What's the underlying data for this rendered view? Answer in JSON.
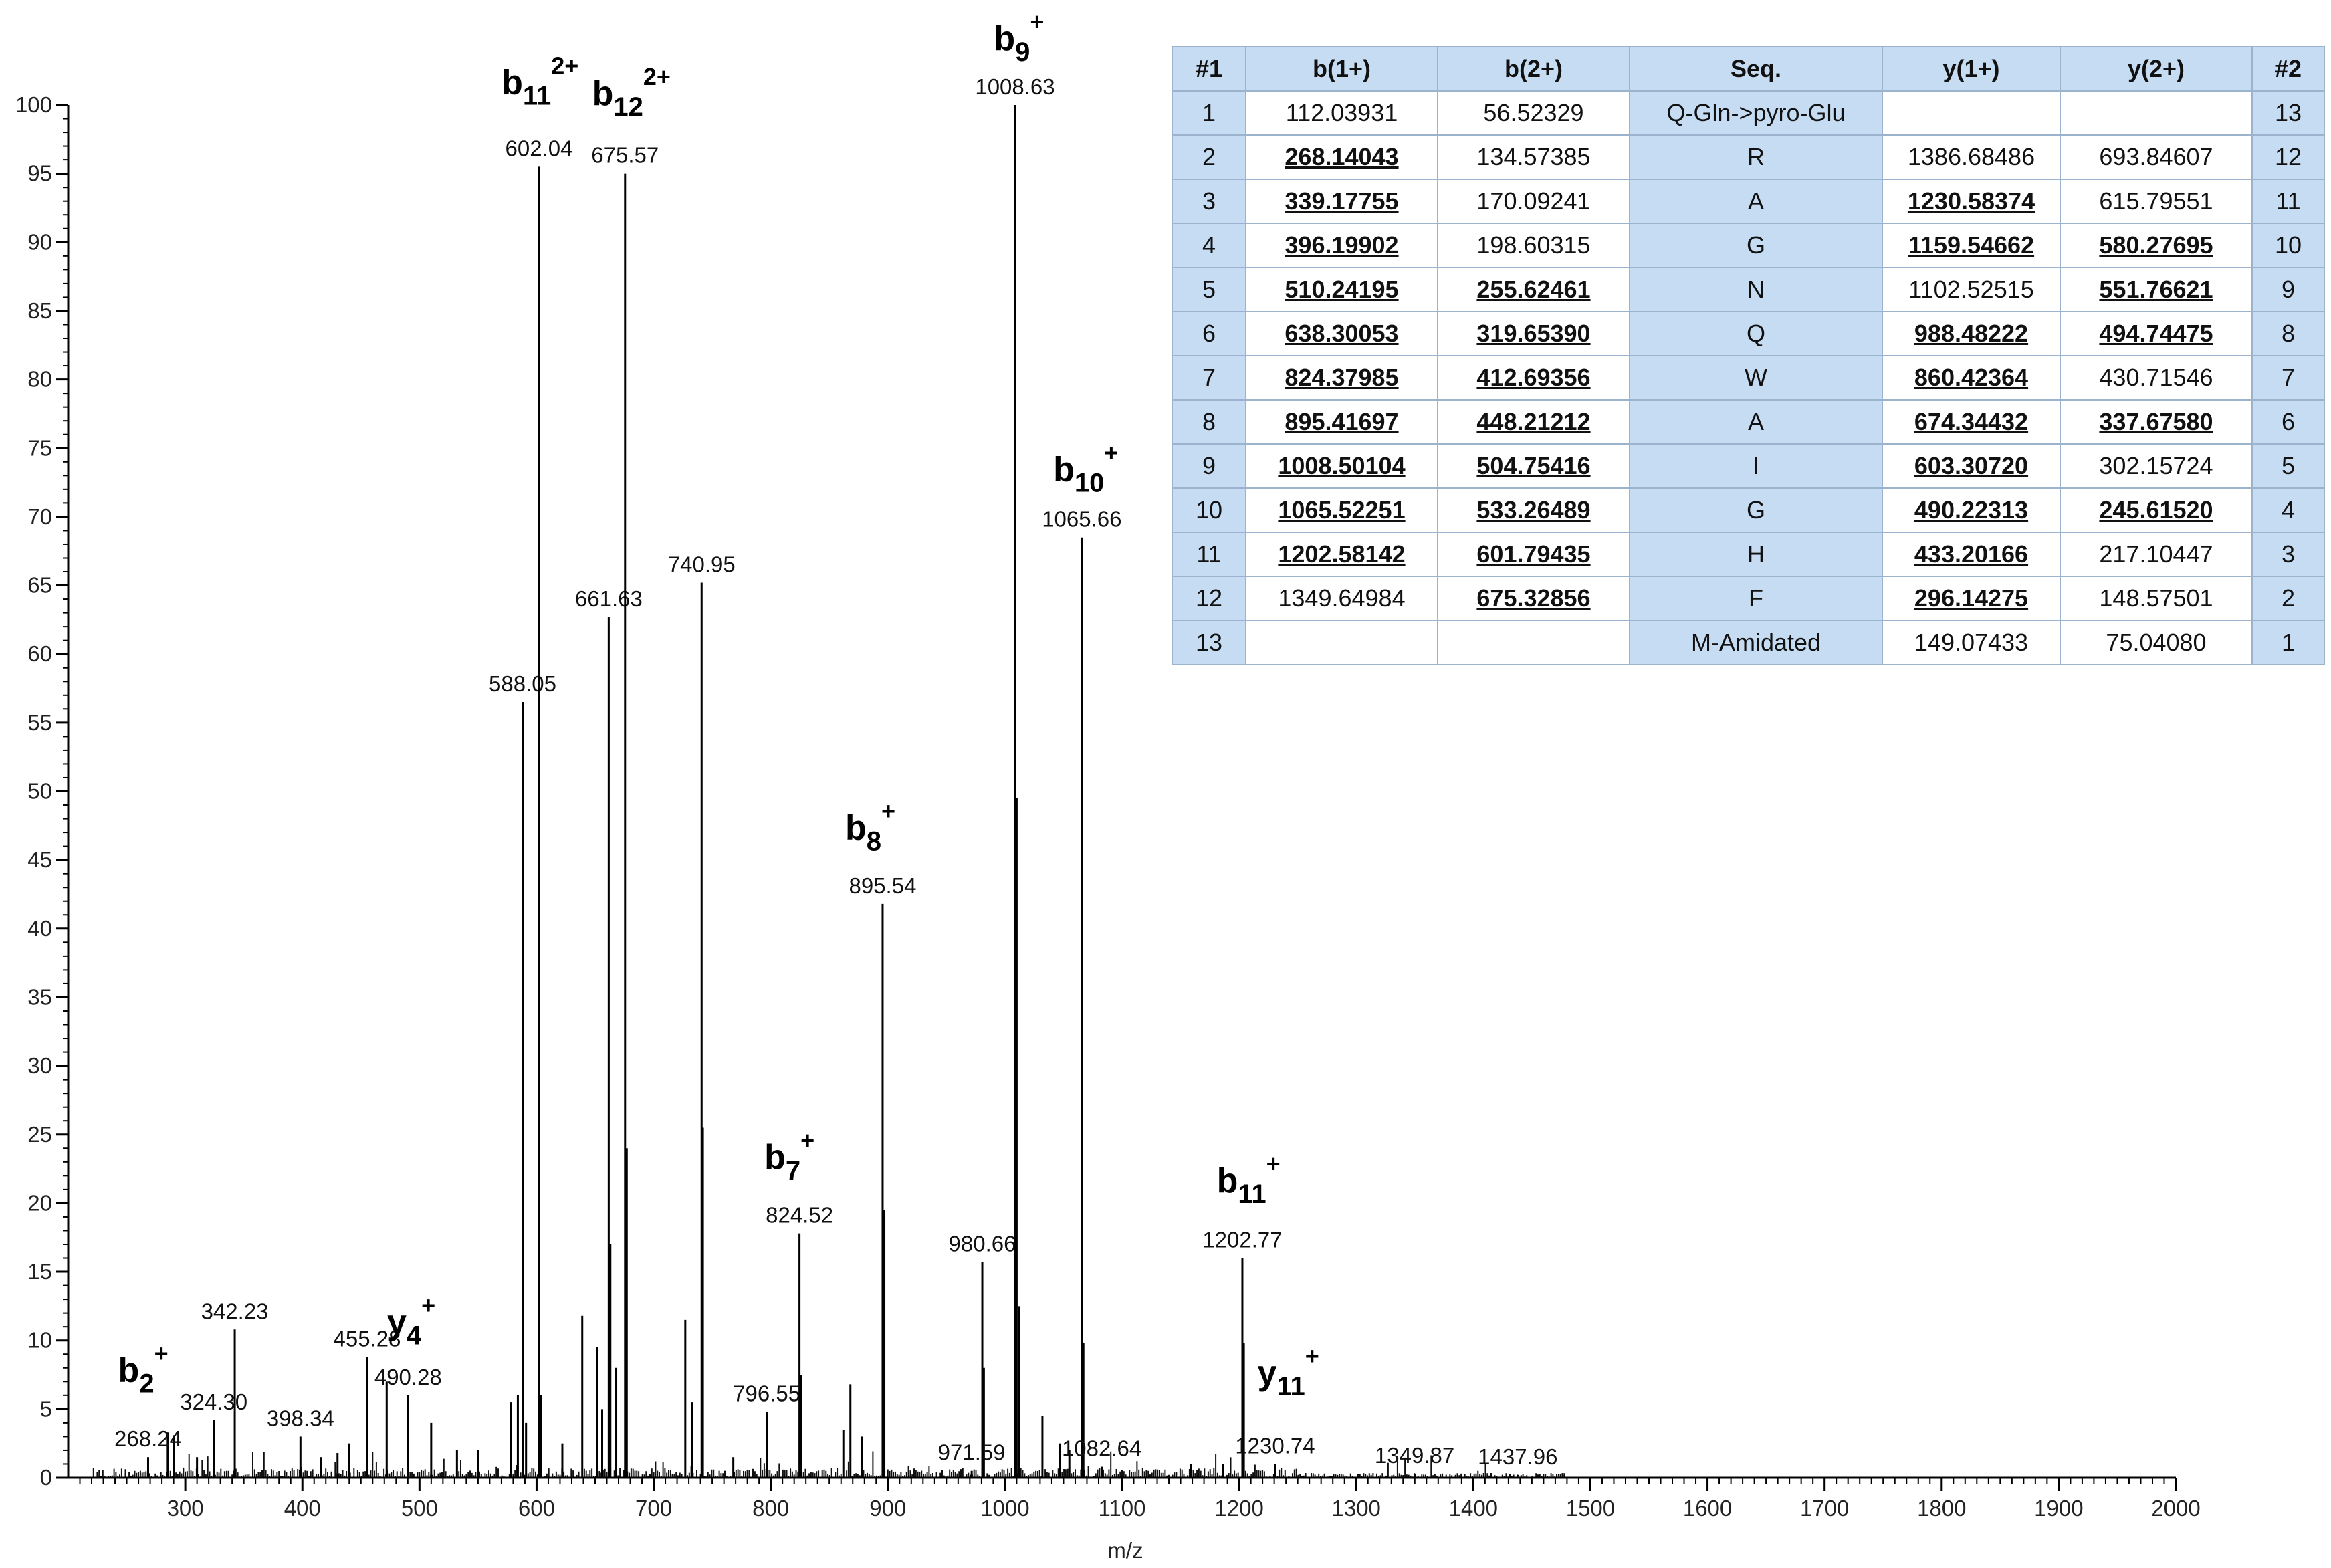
{
  "chart_data": {
    "type": "bar",
    "title": "",
    "xlabel": "m/z",
    "ylabel": "",
    "xlim": [
      200,
      2000
    ],
    "ylim": [
      0,
      100
    ],
    "x_ticks": [
      300,
      400,
      500,
      600,
      700,
      800,
      900,
      1000,
      1100,
      1200,
      1300,
      1400,
      1500,
      1600,
      1700,
      1800,
      1900,
      2000
    ],
    "y_ticks": [
      0,
      5,
      10,
      15,
      20,
      25,
      30,
      35,
      40,
      45,
      50,
      55,
      60,
      65,
      70,
      75,
      80,
      85,
      90,
      95,
      100
    ],
    "grid": false,
    "labeled_peaks": [
      {
        "mz": 268.24,
        "intensity": 1.5,
        "label": "268.24"
      },
      {
        "mz": 324.3,
        "intensity": 4.2,
        "label": "324.30"
      },
      {
        "mz": 342.23,
        "intensity": 10.8,
        "label": "342.23"
      },
      {
        "mz": 398.34,
        "intensity": 3.0,
        "label": "398.34"
      },
      {
        "mz": 455.28,
        "intensity": 8.8,
        "label": "455.28"
      },
      {
        "mz": 490.28,
        "intensity": 6.0,
        "label": "490.28"
      },
      {
        "mz": 588.05,
        "intensity": 56.5,
        "label": "588.05"
      },
      {
        "mz": 602.04,
        "intensity": 95.5,
        "label": "602.04"
      },
      {
        "mz": 661.63,
        "intensity": 62.7,
        "label": "661.63"
      },
      {
        "mz": 675.57,
        "intensity": 95.0,
        "label": "675.57"
      },
      {
        "mz": 740.95,
        "intensity": 65.2,
        "label": "740.95"
      },
      {
        "mz": 796.55,
        "intensity": 4.8,
        "label": "796.55"
      },
      {
        "mz": 824.52,
        "intensity": 17.8,
        "label": "824.52"
      },
      {
        "mz": 895.54,
        "intensity": 41.8,
        "label": "895.54"
      },
      {
        "mz": 971.59,
        "intensity": 0.5,
        "label": "971.59"
      },
      {
        "mz": 980.66,
        "intensity": 15.7,
        "label": "980.66"
      },
      {
        "mz": 1008.63,
        "intensity": 100,
        "label": "1008.63"
      },
      {
        "mz": 1065.66,
        "intensity": 68.5,
        "label": "1065.66"
      },
      {
        "mz": 1082.64,
        "intensity": 0.8,
        "label": "1082.64"
      },
      {
        "mz": 1202.77,
        "intensity": 16.0,
        "label": "1202.77"
      },
      {
        "mz": 1230.74,
        "intensity": 1.0,
        "label": "1230.74"
      },
      {
        "mz": 1349.87,
        "intensity": 0.3,
        "label": "1349.87"
      },
      {
        "mz": 1437.96,
        "intensity": 0.2,
        "label": "1437.96"
      }
    ],
    "minor_peaks": [
      {
        "mz": 285,
        "intensity": 3.3
      },
      {
        "mz": 290,
        "intensity": 3.1
      },
      {
        "mz": 310,
        "intensity": 1.5
      },
      {
        "mz": 416,
        "intensity": 1.5
      },
      {
        "mz": 430,
        "intensity": 1.8
      },
      {
        "mz": 440,
        "intensity": 2.5
      },
      {
        "mz": 472,
        "intensity": 7.0
      },
      {
        "mz": 510,
        "intensity": 4.0
      },
      {
        "mz": 532,
        "intensity": 2.0
      },
      {
        "mz": 550,
        "intensity": 2.0
      },
      {
        "mz": 578,
        "intensity": 5.5
      },
      {
        "mz": 584,
        "intensity": 6.0
      },
      {
        "mz": 591,
        "intensity": 4.0
      },
      {
        "mz": 604,
        "intensity": 6.0
      },
      {
        "mz": 622,
        "intensity": 2.5
      },
      {
        "mz": 639,
        "intensity": 11.8
      },
      {
        "mz": 652,
        "intensity": 9.5
      },
      {
        "mz": 656,
        "intensity": 5.0
      },
      {
        "mz": 663,
        "intensity": 17.0
      },
      {
        "mz": 668,
        "intensity": 8.0
      },
      {
        "mz": 677,
        "intensity": 24.0
      },
      {
        "mz": 727,
        "intensity": 11.5
      },
      {
        "mz": 733,
        "intensity": 5.5
      },
      {
        "mz": 742,
        "intensity": 25.5
      },
      {
        "mz": 768,
        "intensity": 1.5
      },
      {
        "mz": 826,
        "intensity": 7.5
      },
      {
        "mz": 862,
        "intensity": 3.5
      },
      {
        "mz": 868,
        "intensity": 6.8
      },
      {
        "mz": 878,
        "intensity": 3.0
      },
      {
        "mz": 897,
        "intensity": 19.5
      },
      {
        "mz": 982,
        "intensity": 8.0
      },
      {
        "mz": 1010,
        "intensity": 49.5
      },
      {
        "mz": 1012,
        "intensity": 12.5
      },
      {
        "mz": 1032,
        "intensity": 4.5
      },
      {
        "mz": 1047,
        "intensity": 2.5
      },
      {
        "mz": 1055,
        "intensity": 2.0
      },
      {
        "mz": 1067,
        "intensity": 9.8
      },
      {
        "mz": 1159,
        "intensity": 1.0
      },
      {
        "mz": 1186,
        "intensity": 1.0
      },
      {
        "mz": 1204,
        "intensity": 9.8
      }
    ],
    "ion_annotations": [
      {
        "mz": 264,
        "y": 7.0,
        "base": "b",
        "sub": "2",
        "sup": "+"
      },
      {
        "mz": 493,
        "y": 10.5,
        "base": "y",
        "sub": "4",
        "sup": "+"
      },
      {
        "mz": 603,
        "y": 100.8,
        "base": "b",
        "sub": "11",
        "sup": "2+"
      },
      {
        "mz": 681,
        "y": 100.0,
        "base": "b",
        "sub": "12",
        "sup": "2+"
      },
      {
        "mz": 816,
        "y": 22.5,
        "base": "b",
        "sub": "7",
        "sup": "+"
      },
      {
        "mz": 885,
        "y": 46.5,
        "base": "b",
        "sub": "8",
        "sup": "+"
      },
      {
        "mz": 1012,
        "y": 104.0,
        "base": "b",
        "sub": "9",
        "sup": "+"
      },
      {
        "mz": 1069,
        "y": 72.6,
        "base": "b",
        "sub": "10",
        "sup": "+"
      },
      {
        "mz": 1208,
        "y": 20.8,
        "base": "b",
        "sub": "11",
        "sup": "+"
      },
      {
        "mz": 1242,
        "y": 6.8,
        "base": "y",
        "sub": "11",
        "sup": "+"
      }
    ]
  },
  "table": {
    "headers": [
      "#1",
      "b(1+)",
      "b(2+)",
      "Seq.",
      "y(1+)",
      "y(2+)",
      "#2"
    ],
    "rows": [
      {
        "i1": "1",
        "b1": "112.03931",
        "b1_hit": false,
        "b2": "56.52329",
        "b2_hit": false,
        "seq": "Q-Gln->pyro-Glu",
        "y1": "",
        "y1_hit": false,
        "y2": "",
        "y2_hit": false,
        "i2": "13"
      },
      {
        "i1": "2",
        "b1": "268.14043",
        "b1_hit": true,
        "b2": "134.57385",
        "b2_hit": false,
        "seq": "R",
        "y1": "1386.68486",
        "y1_hit": false,
        "y2": "693.84607",
        "y2_hit": false,
        "i2": "12"
      },
      {
        "i1": "3",
        "b1": "339.17755",
        "b1_hit": true,
        "b2": "170.09241",
        "b2_hit": false,
        "seq": "A",
        "y1": "1230.58374",
        "y1_hit": true,
        "y2": "615.79551",
        "y2_hit": false,
        "i2": "11"
      },
      {
        "i1": "4",
        "b1": "396.19902",
        "b1_hit": true,
        "b2": "198.60315",
        "b2_hit": false,
        "seq": "G",
        "y1": "1159.54662",
        "y1_hit": true,
        "y2": "580.27695",
        "y2_hit": true,
        "i2": "10"
      },
      {
        "i1": "5",
        "b1": "510.24195",
        "b1_hit": true,
        "b2": "255.62461",
        "b2_hit": true,
        "seq": "N",
        "y1": "1102.52515",
        "y1_hit": false,
        "y2": "551.76621",
        "y2_hit": true,
        "i2": "9"
      },
      {
        "i1": "6",
        "b1": "638.30053",
        "b1_hit": true,
        "b2": "319.65390",
        "b2_hit": true,
        "seq": "Q",
        "y1": "988.48222",
        "y1_hit": true,
        "y2": "494.74475",
        "y2_hit": true,
        "i2": "8"
      },
      {
        "i1": "7",
        "b1": "824.37985",
        "b1_hit": true,
        "b2": "412.69356",
        "b2_hit": true,
        "seq": "W",
        "y1": "860.42364",
        "y1_hit": true,
        "y2": "430.71546",
        "y2_hit": false,
        "i2": "7"
      },
      {
        "i1": "8",
        "b1": "895.41697",
        "b1_hit": true,
        "b2": "448.21212",
        "b2_hit": true,
        "seq": "A",
        "y1": "674.34432",
        "y1_hit": true,
        "y2": "337.67580",
        "y2_hit": true,
        "i2": "6"
      },
      {
        "i1": "9",
        "b1": "1008.50104",
        "b1_hit": true,
        "b2": "504.75416",
        "b2_hit": true,
        "seq": "I",
        "y1": "603.30720",
        "y1_hit": true,
        "y2": "302.15724",
        "y2_hit": false,
        "i2": "5"
      },
      {
        "i1": "10",
        "b1": "1065.52251",
        "b1_hit": true,
        "b2": "533.26489",
        "b2_hit": true,
        "seq": "G",
        "y1": "490.22313",
        "y1_hit": true,
        "y2": "245.61520",
        "y2_hit": true,
        "i2": "4"
      },
      {
        "i1": "11",
        "b1": "1202.58142",
        "b1_hit": true,
        "b2": "601.79435",
        "b2_hit": true,
        "seq": "H",
        "y1": "433.20166",
        "y1_hit": true,
        "y2": "217.10447",
        "y2_hit": false,
        "i2": "3"
      },
      {
        "i1": "12",
        "b1": "1349.64984",
        "b1_hit": false,
        "b2": "675.32856",
        "b2_hit": true,
        "seq": "F",
        "y1": "296.14275",
        "y1_hit": true,
        "y2": "148.57501",
        "y2_hit": false,
        "i2": "2"
      },
      {
        "i1": "13",
        "b1": "",
        "b1_hit": false,
        "b2": "",
        "b2_hit": false,
        "seq": "M-Amidated",
        "y1": "149.07433",
        "y1_hit": false,
        "y2": "75.04080",
        "y2_hit": false,
        "i2": "1"
      }
    ]
  }
}
